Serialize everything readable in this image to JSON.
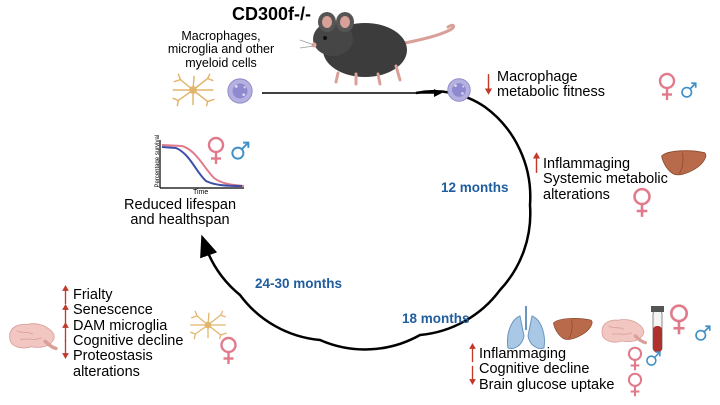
{
  "title": "CD300f-/-",
  "cells_label": [
    "Macrophages,",
    "microglia and other",
    "myeloid cells"
  ],
  "macrophage_effect": [
    "Macrophage",
    "metabolic fitness"
  ],
  "outcome": [
    "Reduced lifespan",
    "and healthspan"
  ],
  "survival_plot": {
    "ylabel": "Percentage survival",
    "xlabel": "Time"
  },
  "stage_12": {
    "time": "12 months",
    "effects": [
      "Inflammaging",
      "Systemic metabolic",
      "alterations"
    ]
  },
  "stage_18": {
    "time": "18 months",
    "effects": [
      "Inflammaging",
      "Cognitive decline",
      "Brain glucose uptake"
    ]
  },
  "stage_24": {
    "time": "24-30 months",
    "effects": [
      "Frialty",
      "Senescence",
      "DAM microglia",
      "Cognitive decline",
      "Proteostasis",
      "alterations"
    ]
  },
  "colors": {
    "female": "#e07b8c",
    "male": "#3f8fc8",
    "arrow_up": "#c0392b",
    "time_label": "#1f5d9e",
    "cycle": "#000000"
  }
}
